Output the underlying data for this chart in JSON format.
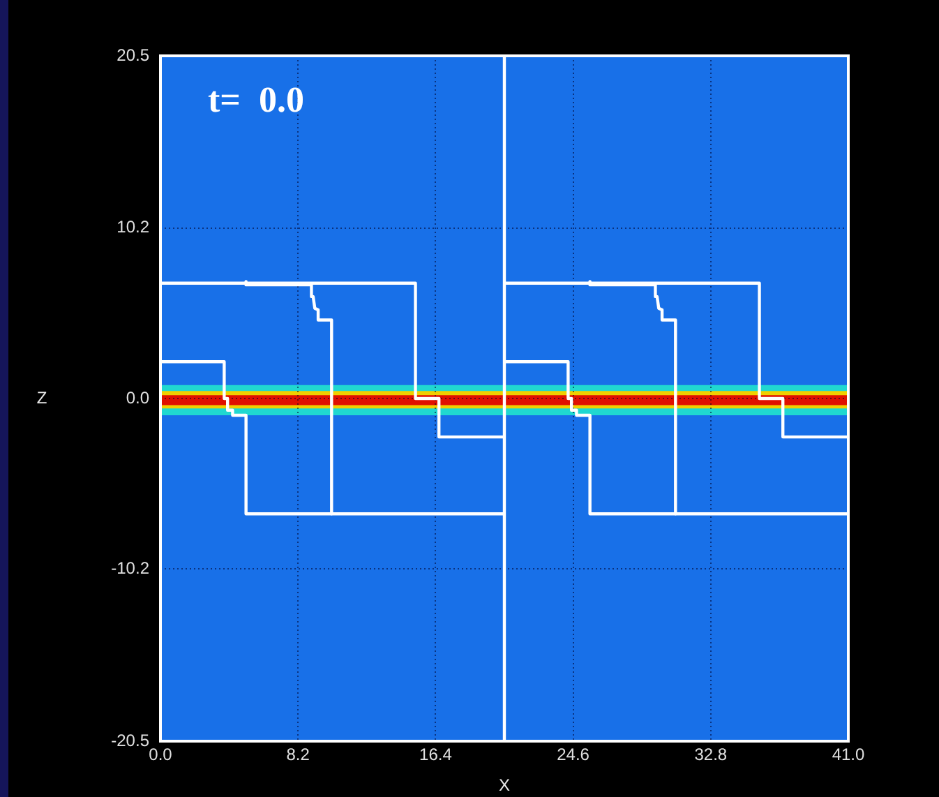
{
  "chart_data": {
    "type": "line",
    "xlabel": "X",
    "ylabel": "Z",
    "annotations": [
      "t=  0.0"
    ],
    "xlim": [
      0,
      41
    ],
    "ylim": [
      -20.5,
      20.5
    ],
    "xticks": [
      {
        "value": 0,
        "label": "0.0"
      },
      8.2,
      16.4,
      24.6,
      32.8,
      {
        "value": 41,
        "label": "41.0"
      }
    ],
    "yticks": [
      -20.5,
      -10.2,
      {
        "value": 0,
        "label": "0.0"
      },
      10.2,
      20.5
    ],
    "grid": true,
    "marker": "none",
    "line_style": "solid",
    "bands": [
      {
        "axis": "y",
        "from": -1.0,
        "to": 0.8,
        "color": "#20d8d0"
      },
      {
        "axis": "y",
        "from": -0.6,
        "to": 0.45,
        "color": "#f0d000"
      },
      {
        "axis": "y",
        "from": -0.4,
        "to": 0.2,
        "color": "#e01000"
      }
    ],
    "series": [
      {
        "color": "#ffffff",
        "x": [
          0,
          15.2,
          15.2,
          16.6,
          16.6,
          20.5
        ],
        "values": [
          6.9,
          6.9,
          0,
          0,
          -2.3,
          -2.3
        ]
      },
      {
        "color": "#ffffff",
        "x": [
          0,
          3.8,
          3.8,
          4.0,
          4.0,
          4.3,
          4.3,
          5.1,
          5.1,
          20.5
        ],
        "values": [
          2.2,
          2.2,
          0,
          0,
          -0.7,
          -0.7,
          -1.0,
          -1.0,
          -6.9,
          -6.9
        ]
      },
      {
        "color": "#ffffff",
        "x": [
          5.1,
          5.1,
          9.0,
          9.0,
          9.1,
          9.2,
          9.4,
          9.4,
          10.2,
          10.2
        ],
        "values": [
          7.0,
          6.8,
          6.8,
          6.1,
          6.1,
          5.4,
          5.3,
          4.7,
          4.7,
          -6.9
        ]
      },
      {
        "color": "#ffffff",
        "x": [
          20.5,
          20.5
        ],
        "values": [
          -20.5,
          20.5
        ]
      },
      {
        "color": "#ffffff",
        "x": [
          20.5,
          35.7,
          35.7,
          37.1,
          37.1,
          41
        ],
        "values": [
          6.9,
          6.9,
          0,
          0,
          -2.3,
          -2.3
        ]
      },
      {
        "color": "#ffffff",
        "x": [
          20.5,
          24.3,
          24.3,
          24.5,
          24.5,
          24.8,
          24.8,
          25.6,
          25.6,
          41
        ],
        "values": [
          2.2,
          2.2,
          0,
          0,
          -0.7,
          -0.7,
          -1.0,
          -1.0,
          -6.9,
          -6.9
        ]
      },
      {
        "color": "#ffffff",
        "x": [
          25.6,
          25.6,
          29.5,
          29.5,
          29.6,
          29.7,
          29.9,
          29.9,
          30.7,
          30.7
        ],
        "values": [
          7.0,
          6.8,
          6.8,
          6.1,
          6.1,
          5.4,
          5.3,
          4.7,
          4.7,
          -6.9
        ]
      }
    ]
  }
}
